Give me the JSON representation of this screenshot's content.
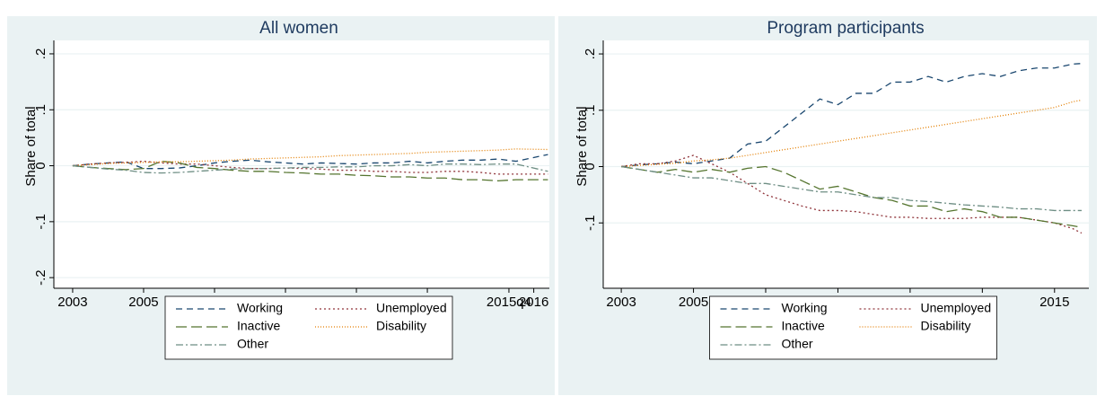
{
  "chart_data": [
    {
      "type": "line",
      "title": "All women",
      "y_label": "Share of total",
      "grid": true,
      "legend": "bottom",
      "xlim": [
        2002.47,
        2016.44
      ],
      "ylim": [
        -0.219,
        0.224
      ],
      "xticks": [
        2003,
        2005,
        2007,
        2009,
        2011,
        2013,
        {
          "value": 2015.3,
          "label": "2015q4"
        },
        2016
      ],
      "yticks": [
        {
          "value": -0.2,
          "label": "-.2"
        },
        {
          "value": -0.1,
          "label": "-.1"
        },
        0,
        {
          "value": 0.1,
          "label": ".1"
        },
        {
          "value": 0.2,
          "label": ".2"
        }
      ],
      "x": [
        2003,
        2003.5,
        2004,
        2004.5,
        2005,
        2005.5,
        2006,
        2006.5,
        2007,
        2007.5,
        2008,
        2008.5,
        2009,
        2009.5,
        2010,
        2010.5,
        2011,
        2011.5,
        2012,
        2012.5,
        2013,
        2013.5,
        2014,
        2014.5,
        2015,
        2015.5,
        2016.4
      ],
      "series": [
        {
          "name": "Working",
          "color": "#1a476f",
          "values": [
            0,
            0.003,
            0.005,
            0.007,
            -0.005,
            -0.005,
            -0.004,
            0,
            0.005,
            0.008,
            0.01,
            0.007,
            0.005,
            0.003,
            0.005,
            0.004,
            0.003,
            0.005,
            0.005,
            0.008,
            0.005,
            0.008,
            0.01,
            0.01,
            0.012,
            0.008,
            0.02
          ]
        },
        {
          "name": "Unemployed",
          "color": "#90353b",
          "values": [
            0,
            0.003,
            0.005,
            0.006,
            0.008,
            0.005,
            0.003,
            0.003,
            0,
            -0.003,
            -0.005,
            -0.005,
            -0.004,
            -0.005,
            -0.006,
            -0.008,
            -0.008,
            -0.01,
            -0.01,
            -0.012,
            -0.012,
            -0.01,
            -0.01,
            -0.012,
            -0.015,
            -0.015,
            -0.015
          ]
        },
        {
          "name": "Inactive",
          "color": "#55752f",
          "values": [
            0,
            -0.003,
            -0.005,
            -0.007,
            -0.005,
            0.008,
            0.005,
            -0.003,
            -0.005,
            -0.008,
            -0.01,
            -0.01,
            -0.012,
            -0.013,
            -0.015,
            -0.015,
            -0.017,
            -0.018,
            -0.02,
            -0.02,
            -0.022,
            -0.022,
            -0.025,
            -0.025,
            -0.027,
            -0.025,
            -0.025
          ]
        },
        {
          "name": "Disability",
          "color": "#e37e00",
          "values": [
            0,
            0.002,
            0.004,
            0.005,
            0.006,
            0.007,
            0.007,
            0.008,
            0.009,
            0.01,
            0.012,
            0.013,
            0.014,
            0.015,
            0.016,
            0.018,
            0.019,
            0.02,
            0.021,
            0.022,
            0.024,
            0.025,
            0.026,
            0.027,
            0.028,
            0.03,
            0.029
          ]
        },
        {
          "name": "Other",
          "color": "#6e8e84",
          "values": [
            0,
            -0.003,
            -0.006,
            -0.008,
            -0.012,
            -0.013,
            -0.012,
            -0.01,
            -0.008,
            -0.006,
            -0.005,
            -0.005,
            -0.004,
            -0.003,
            -0.003,
            -0.002,
            -0.002,
            0,
            0,
            0.002,
            0,
            0.003,
            0.003,
            0.002,
            0.003,
            0.003,
            -0.01
          ]
        }
      ]
    },
    {
      "type": "line",
      "title": "Program participants",
      "y_label": "Share of total",
      "grid": true,
      "legend": "bottom",
      "xlim": [
        2002.5,
        2015.95
      ],
      "ylim": [
        -0.216,
        0.224
      ],
      "xticks": [
        2003,
        2005,
        2007,
        2009,
        2011,
        2013,
        2015
      ],
      "yticks": [
        {
          "value": -0.1,
          "label": "-.1"
        },
        0,
        {
          "value": 0.1,
          "label": ".1"
        },
        {
          "value": 0.2,
          "label": ".2"
        }
      ],
      "x": [
        2003,
        2003.5,
        2004,
        2004.5,
        2005,
        2005.5,
        2006,
        2006.5,
        2007,
        2007.5,
        2008,
        2008.5,
        2009,
        2009.5,
        2010,
        2010.5,
        2011,
        2011.5,
        2012,
        2012.5,
        2013,
        2013.5,
        2014,
        2014.5,
        2015,
        2015.5,
        2015.75
      ],
      "series": [
        {
          "name": "Working",
          "color": "#1a476f",
          "values": [
            0,
            0.003,
            0.005,
            0.008,
            0.005,
            0.01,
            0.015,
            0.04,
            0.045,
            0.07,
            0.095,
            0.12,
            0.11,
            0.13,
            0.13,
            0.15,
            0.15,
            0.16,
            0.15,
            0.16,
            0.165,
            0.16,
            0.17,
            0.175,
            0.175,
            0.182,
            0.183
          ]
        },
        {
          "name": "Unemployed",
          "color": "#90353b",
          "values": [
            0,
            0.005,
            0.005,
            0.01,
            0.02,
            0.005,
            -0.01,
            -0.03,
            -0.05,
            -0.06,
            -0.07,
            -0.078,
            -0.078,
            -0.08,
            -0.085,
            -0.09,
            -0.09,
            -0.092,
            -0.092,
            -0.092,
            -0.09,
            -0.09,
            -0.09,
            -0.095,
            -0.1,
            -0.11,
            -0.118
          ]
        },
        {
          "name": "Inactive",
          "color": "#55752f",
          "values": [
            0,
            -0.005,
            -0.01,
            -0.005,
            -0.01,
            -0.005,
            -0.01,
            -0.003,
            0,
            -0.01,
            -0.025,
            -0.04,
            -0.035,
            -0.045,
            -0.055,
            -0.06,
            -0.07,
            -0.07,
            -0.08,
            -0.075,
            -0.08,
            -0.09,
            -0.09,
            -0.095,
            -0.1,
            -0.105,
            -0.108
          ]
        },
        {
          "name": "Disability",
          "color": "#e37e00",
          "values": [
            0,
            0.002,
            0.004,
            0.006,
            0.01,
            0.012,
            0.015,
            0.02,
            0.025,
            0.03,
            0.035,
            0.04,
            0.045,
            0.05,
            0.055,
            0.06,
            0.065,
            0.07,
            0.075,
            0.08,
            0.085,
            0.09,
            0.095,
            0.1,
            0.105,
            0.115,
            0.118
          ]
        },
        {
          "name": "Other",
          "color": "#6e8e84",
          "values": [
            0,
            -0.005,
            -0.01,
            -0.015,
            -0.02,
            -0.02,
            -0.025,
            -0.03,
            -0.03,
            -0.035,
            -0.04,
            -0.045,
            -0.045,
            -0.05,
            -0.055,
            -0.055,
            -0.06,
            -0.062,
            -0.065,
            -0.068,
            -0.07,
            -0.072,
            -0.075,
            -0.075,
            -0.078,
            -0.078,
            -0.078
          ]
        }
      ]
    }
  ]
}
